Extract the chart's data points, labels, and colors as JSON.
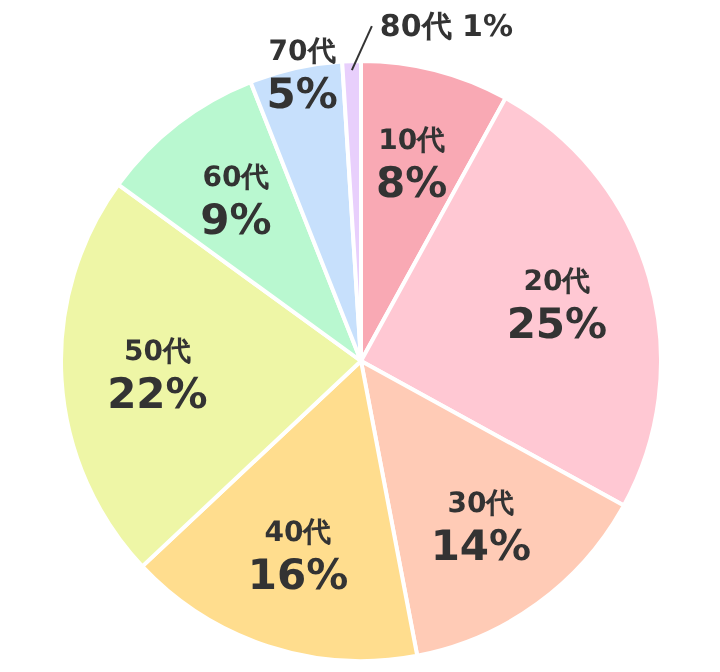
{
  "chart_data": {
    "type": "pie",
    "categories": [
      "10代",
      "20代",
      "30代",
      "40代",
      "50代",
      "60代",
      "70代",
      "80代"
    ],
    "values": [
      8,
      25,
      14,
      16,
      22,
      9,
      5,
      1
    ],
    "value_labels": [
      "8%",
      "25%",
      "14%",
      "16%",
      "22%",
      "9%",
      "5%",
      "1%"
    ],
    "colors": [
      "#f9a9b4",
      "#ffc8d3",
      "#ffcbb6",
      "#ffdd8e",
      "#eef6a6",
      "#b9f8d0",
      "#c7e0fc",
      "#e8cffc"
    ]
  }
}
